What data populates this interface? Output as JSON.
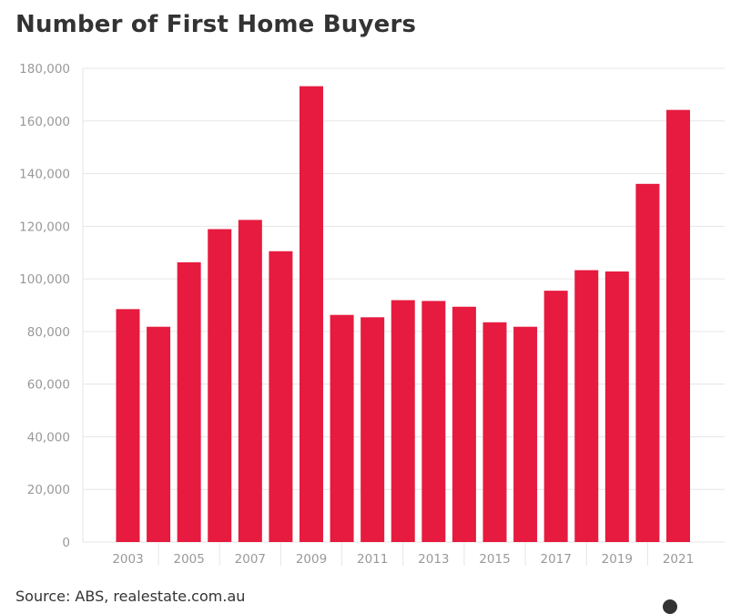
{
  "title": "Number of First Home Buyers",
  "source": "Source: ABS, realestate.com.au",
  "colors": {
    "bar": "#e61b3f",
    "grid": "#e6e6e6",
    "axis_text": "#999999",
    "title": "#333333"
  },
  "chart_data": {
    "type": "bar",
    "title": "Number of First Home Buyers",
    "xlabel": "",
    "ylabel": "",
    "ylim": [
      0,
      180000
    ],
    "yticks": [
      "0",
      "20,000",
      "40,000",
      "60,000",
      "80,000",
      "100,000",
      "120,000",
      "140,000",
      "160,000",
      "180,000"
    ],
    "xtick_labels": [
      "2003",
      "2005",
      "2007",
      "2009",
      "2011",
      "2013",
      "2015",
      "2017",
      "2019",
      "2021"
    ],
    "categories": [
      "2003",
      "2004",
      "2005",
      "2006",
      "2007",
      "2008",
      "2009",
      "2010",
      "2011",
      "2012",
      "2013",
      "2014",
      "2015",
      "2016",
      "2017",
      "2018",
      "2019",
      "2020",
      "2021"
    ],
    "values": [
      88500,
      81800,
      106300,
      118900,
      122400,
      110500,
      173200,
      86300,
      85400,
      91900,
      91600,
      89400,
      83500,
      81800,
      95500,
      103300,
      102800,
      136100,
      164200
    ],
    "grid": true,
    "legend": "none"
  }
}
